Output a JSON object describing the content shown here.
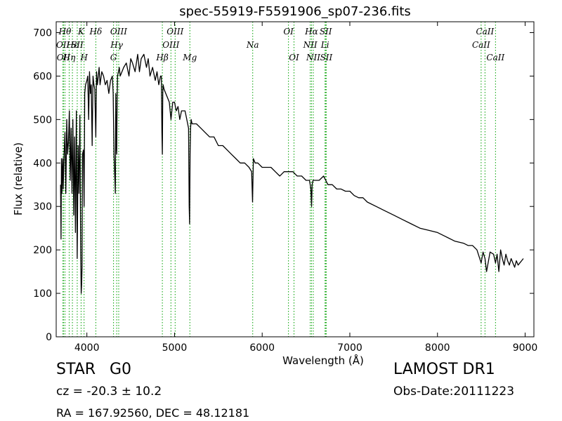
{
  "chart_data": {
    "type": "line",
    "title": "spec-55919-F5591906_sp07-236.fits",
    "xlabel": "Wavelength (Å)",
    "ylabel": "Flux (relative)",
    "xlim": [
      3650,
      9100
    ],
    "ylim": [
      0,
      725
    ],
    "xticks": [
      4000,
      5000,
      6000,
      7000,
      8000,
      9000
    ],
    "yticks": [
      0,
      100,
      200,
      300,
      400,
      500,
      600,
      700
    ],
    "series": [
      {
        "color": "#000000",
        "x": [
          3700,
          3705,
          3710,
          3715,
          3720,
          3725,
          3730,
          3740,
          3750,
          3760,
          3770,
          3780,
          3790,
          3800,
          3810,
          3820,
          3830,
          3840,
          3850,
          3860,
          3870,
          3880,
          3890,
          3900,
          3910,
          3920,
          3930,
          3935,
          3940,
          3945,
          3950,
          3960,
          3968,
          3975,
          3985,
          4000,
          4010,
          4020,
          4030,
          4040,
          4050,
          4060,
          4070,
          4080,
          4090,
          4102,
          4110,
          4120,
          4130,
          4140,
          4150,
          4170,
          4190,
          4210,
          4230,
          4250,
          4270,
          4290,
          4300,
          4310,
          4320,
          4325,
          4330,
          4335,
          4340,
          4345,
          4350,
          4360,
          4370,
          4380,
          4400,
          4420,
          4450,
          4480,
          4500,
          4520,
          4550,
          4580,
          4600,
          4620,
          4650,
          4680,
          4700,
          4720,
          4750,
          4780,
          4800,
          4820,
          4840,
          4850,
          4856,
          4861,
          4866,
          4870,
          4880,
          4900,
          4920,
          4940,
          4960,
          4980,
          5000,
          5020,
          5040,
          5060,
          5080,
          5100,
          5120,
          5140,
          5160,
          5167,
          5172,
          5178,
          5183,
          5190,
          5200,
          5250,
          5300,
          5350,
          5400,
          5450,
          5500,
          5550,
          5600,
          5650,
          5700,
          5750,
          5800,
          5850,
          5880,
          5890,
          5895,
          5900,
          5920,
          5950,
          6000,
          6050,
          6100,
          6150,
          6200,
          6250,
          6300,
          6350,
          6400,
          6450,
          6500,
          6540,
          6555,
          6563,
          6570,
          6580,
          6600,
          6650,
          6700,
          6750,
          6800,
          6850,
          6900,
          6950,
          7000,
          7050,
          7100,
          7150,
          7200,
          7300,
          7400,
          7500,
          7600,
          7700,
          7800,
          7900,
          8000,
          8100,
          8200,
          8300,
          8350,
          8400,
          8450,
          8498,
          8520,
          8542,
          8560,
          8600,
          8640,
          8662,
          8680,
          8700,
          8720,
          8740,
          8760,
          8780,
          8800,
          8820,
          8840,
          8860,
          8880,
          8900,
          8920,
          8940,
          8960,
          8980
        ],
        "values": [
          350,
          225,
          410,
          330,
          380,
          410,
          340,
          420,
          470,
          330,
          500,
          420,
          450,
          520,
          360,
          480,
          330,
          500,
          280,
          460,
          240,
          520,
          180,
          440,
          330,
          510,
          190,
          100,
          120,
          160,
          420,
          430,
          300,
          560,
          580,
          590,
          600,
          500,
          610,
          560,
          580,
          440,
          600,
          580,
          570,
          460,
          610,
          580,
          600,
          620,
          580,
          610,
          600,
          580,
          590,
          560,
          590,
          600,
          560,
          420,
          360,
          330,
          560,
          440,
          420,
          540,
          600,
          610,
          620,
          600,
          610,
          620,
          630,
          600,
          640,
          630,
          610,
          650,
          610,
          640,
          650,
          620,
          640,
          600,
          620,
          590,
          610,
          580,
          600,
          600,
          470,
          420,
          560,
          580,
          570,
          560,
          550,
          540,
          500,
          540,
          540,
          520,
          530,
          500,
          520,
          520,
          520,
          500,
          480,
          300,
          260,
          420,
          480,
          500,
          490,
          490,
          480,
          470,
          460,
          460,
          440,
          440,
          430,
          420,
          410,
          400,
          400,
          390,
          380,
          310,
          360,
          410,
          400,
          400,
          390,
          390,
          390,
          380,
          370,
          380,
          380,
          380,
          370,
          370,
          360,
          360,
          340,
          300,
          350,
          360,
          360,
          360,
          370,
          350,
          350,
          340,
          340,
          335,
          335,
          325,
          320,
          320,
          310,
          300,
          290,
          280,
          270,
          260,
          250,
          245,
          240,
          230,
          220,
          215,
          210,
          210,
          200,
          170,
          195,
          180,
          150,
          195,
          190,
          170,
          190,
          150,
          200,
          180,
          165,
          190,
          175,
          165,
          180,
          170,
          160,
          175,
          165,
          170,
          175,
          180
        ]
      }
    ],
    "line_labels": [
      {
        "x": 3727,
        "row": 2,
        "text": "OII"
      },
      {
        "x": 3733,
        "row": 3,
        "text": "OII"
      },
      {
        "x": 3750,
        "row": 1,
        "text": "Hθ"
      },
      {
        "x": 3798,
        "row": 3,
        "text": "Hη"
      },
      {
        "x": 3835,
        "row": 2,
        "text": "Hε"
      },
      {
        "x": 3890,
        "row": 2,
        "text": "SII"
      },
      {
        "x": 3934,
        "row": 1,
        "text": "K"
      },
      {
        "x": 3968,
        "row": 3,
        "text": "H"
      },
      {
        "x": 4102,
        "row": 1,
        "text": "Hδ"
      },
      {
        "x": 4304,
        "row": 3,
        "text": "G"
      },
      {
        "x": 4340,
        "row": 2,
        "text": "Hγ"
      },
      {
        "x": 4363,
        "row": 1,
        "text": "OIII"
      },
      {
        "x": 4861,
        "row": 3,
        "text": "Hβ"
      },
      {
        "x": 4959,
        "row": 2,
        "text": "OIII"
      },
      {
        "x": 5007,
        "row": 1,
        "text": "OIII"
      },
      {
        "x": 5175,
        "row": 3,
        "text": "Mg"
      },
      {
        "x": 5892,
        "row": 2,
        "text": "Na"
      },
      {
        "x": 6300,
        "row": 1,
        "text": "OI"
      },
      {
        "x": 6363,
        "row": 3,
        "text": "OI"
      },
      {
        "x": 6548,
        "row": 2,
        "text": "NII"
      },
      {
        "x": 6563,
        "row": 1,
        "text": "Hα"
      },
      {
        "x": 6583,
        "row": 3,
        "text": "NII"
      },
      {
        "x": 6717,
        "row": 2,
        "text": "Li"
      },
      {
        "x": 6725,
        "row": 1,
        "text": "SII"
      },
      {
        "x": 6731,
        "row": 3,
        "text": "SII"
      },
      {
        "x": 8498,
        "row": 2,
        "text": "CaII"
      },
      {
        "x": 8542,
        "row": 1,
        "text": "CaII"
      },
      {
        "x": 8662,
        "row": 3,
        "text": "CaII"
      }
    ],
    "grid": false
  },
  "info": {
    "object_class": "STAR",
    "subclass": "G0",
    "cz": "cz = -20.3 ± 10.2",
    "survey": "LAMOST DR1",
    "obs_date": "Obs-Date:20111223",
    "coords": "RA = 167.92560, DEC = 48.12181"
  },
  "colors": {
    "spectrum": "#000000",
    "line_marker": "#00a000",
    "axes": "#000000"
  }
}
